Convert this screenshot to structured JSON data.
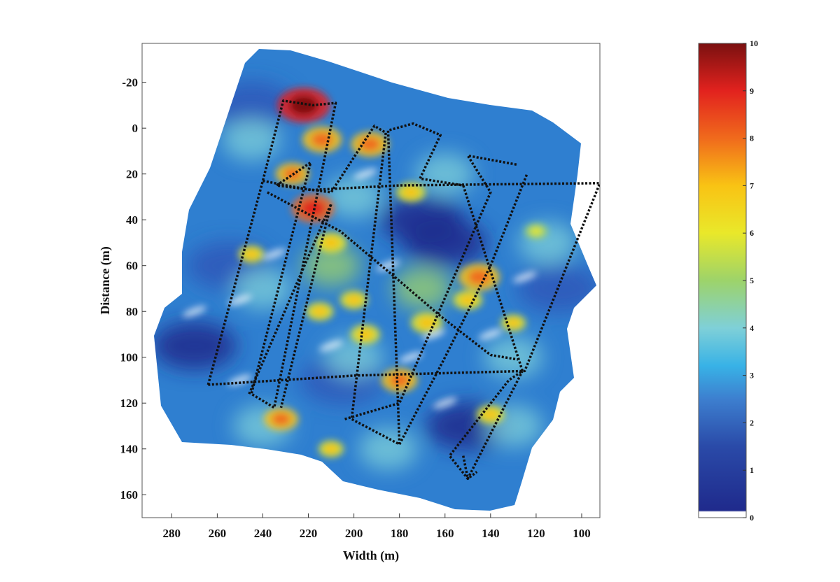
{
  "chart_data": {
    "type": "heatmap",
    "title": "",
    "xlabel": "Width (m)",
    "ylabel": "Distance (m)",
    "xlim": [
      293,
      92
    ],
    "ylim": [
      -37,
      170
    ],
    "x_reversed": true,
    "y_reversed": true,
    "x_ticks": [
      280,
      260,
      240,
      220,
      200,
      180,
      160,
      140,
      120,
      100
    ],
    "y_ticks": [
      -20,
      0,
      20,
      40,
      60,
      80,
      100,
      120,
      140,
      160
    ],
    "colorbar": {
      "min": 0,
      "max": 10,
      "ticks": [
        0,
        1,
        2,
        3,
        4,
        5,
        6,
        7,
        8,
        9,
        10
      ],
      "colors": [
        "#ffffff",
        "#1f2a8c",
        "#2f58b8",
        "#3aa3e0",
        "#7fd0d8",
        "#9dd36a",
        "#e9e82a",
        "#f9c314",
        "#f06a1c",
        "#e2221e",
        "#7a1010"
      ]
    },
    "survey_tracks": [
      {
        "name": "",
        "points": [
          [
            264,
            112
          ],
          [
            240,
            23
          ],
          [
            231,
            -12
          ],
          [
            218,
            -10
          ],
          [
            208,
            -11
          ],
          [
            235,
            122
          ],
          [
            245,
            116
          ],
          [
            219,
            15
          ],
          [
            234,
            25
          ],
          [
            210,
            28
          ],
          [
            191,
            -1
          ],
          [
            186,
            2
          ],
          [
            201,
            127
          ],
          [
            180,
            138
          ],
          [
            185,
            1
          ],
          [
            174,
            -2
          ],
          [
            162,
            3
          ],
          [
            171,
            22
          ],
          [
            152,
            25
          ],
          [
            126,
            106
          ],
          [
            132,
            110
          ],
          [
            158,
            143
          ],
          [
            150,
            153
          ],
          [
            146,
            150
          ]
        ]
      },
      {
        "name": "",
        "points": [
          [
            264,
            112
          ],
          [
            200,
            108
          ],
          [
            125,
            106
          ],
          [
            92,
            24
          ]
        ]
      },
      {
        "name": "",
        "points": [
          [
            240,
            23
          ],
          [
            219,
            27
          ],
          [
            180,
            25
          ],
          [
            92,
            24
          ]
        ]
      },
      {
        "name": "",
        "points": [
          [
            238,
            28
          ],
          [
            206,
            45
          ],
          [
            182,
            65
          ],
          [
            162,
            82
          ],
          [
            140,
            99
          ],
          [
            128,
            101
          ]
        ]
      },
      {
        "name": "",
        "points": [
          [
            246,
            116
          ],
          [
            210,
            33
          ],
          [
            232,
            122
          ]
        ]
      },
      {
        "name": "",
        "points": [
          [
            204,
            127
          ],
          [
            180,
            120
          ],
          [
            140,
            28
          ],
          [
            150,
            12
          ],
          [
            128,
            16
          ]
        ]
      },
      {
        "name": "",
        "points": [
          [
            180,
            138
          ],
          [
            160,
            100
          ],
          [
            140,
            60
          ],
          [
            124,
            20
          ]
        ]
      },
      {
        "name": "",
        "points": [
          [
            152,
            143
          ],
          [
            150,
            153
          ],
          [
            126,
            106
          ]
        ]
      }
    ],
    "hotspots": [
      {
        "x": 222,
        "y": -10,
        "value": 9.8
      },
      {
        "x": 214,
        "y": 5,
        "value": 8.2
      },
      {
        "x": 193,
        "y": 7,
        "value": 8.0
      },
      {
        "x": 227,
        "y": 20,
        "value": 7.5
      },
      {
        "x": 218,
        "y": 35,
        "value": 8.6
      },
      {
        "x": 210,
        "y": 50,
        "value": 7.2
      },
      {
        "x": 175,
        "y": 28,
        "value": 7.0
      },
      {
        "x": 215,
        "y": 80,
        "value": 6.8
      },
      {
        "x": 180,
        "y": 110,
        "value": 7.8
      },
      {
        "x": 145,
        "y": 65,
        "value": 8.4
      },
      {
        "x": 150,
        "y": 75,
        "value": 7.0
      },
      {
        "x": 195,
        "y": 90,
        "value": 7.0
      },
      {
        "x": 232,
        "y": 127,
        "value": 7.6
      },
      {
        "x": 200,
        "y": 75,
        "value": 6.8
      },
      {
        "x": 168,
        "y": 85,
        "value": 7.3
      },
      {
        "x": 130,
        "y": 85,
        "value": 6.5
      },
      {
        "x": 120,
        "y": 45,
        "value": 6.3
      },
      {
        "x": 245,
        "y": 55,
        "value": 6.6
      },
      {
        "x": 140,
        "y": 125,
        "value": 6.8
      },
      {
        "x": 210,
        "y": 140,
        "value": 6.5
      }
    ],
    "lowspots": [
      {
        "x": 270,
        "y": 95,
        "value": 1.2
      },
      {
        "x": 170,
        "y": 40,
        "value": 1.3
      },
      {
        "x": 160,
        "y": 50,
        "value": 1.4
      },
      {
        "x": 205,
        "y": 110,
        "value": 1.6
      },
      {
        "x": 245,
        "y": -10,
        "value": 1.5
      },
      {
        "x": 150,
        "y": 130,
        "value": 1.4
      },
      {
        "x": 110,
        "y": 70,
        "value": 1.6
      },
      {
        "x": 255,
        "y": 60,
        "value": 1.5
      }
    ],
    "legend": "colorbar-right",
    "grid": false
  }
}
